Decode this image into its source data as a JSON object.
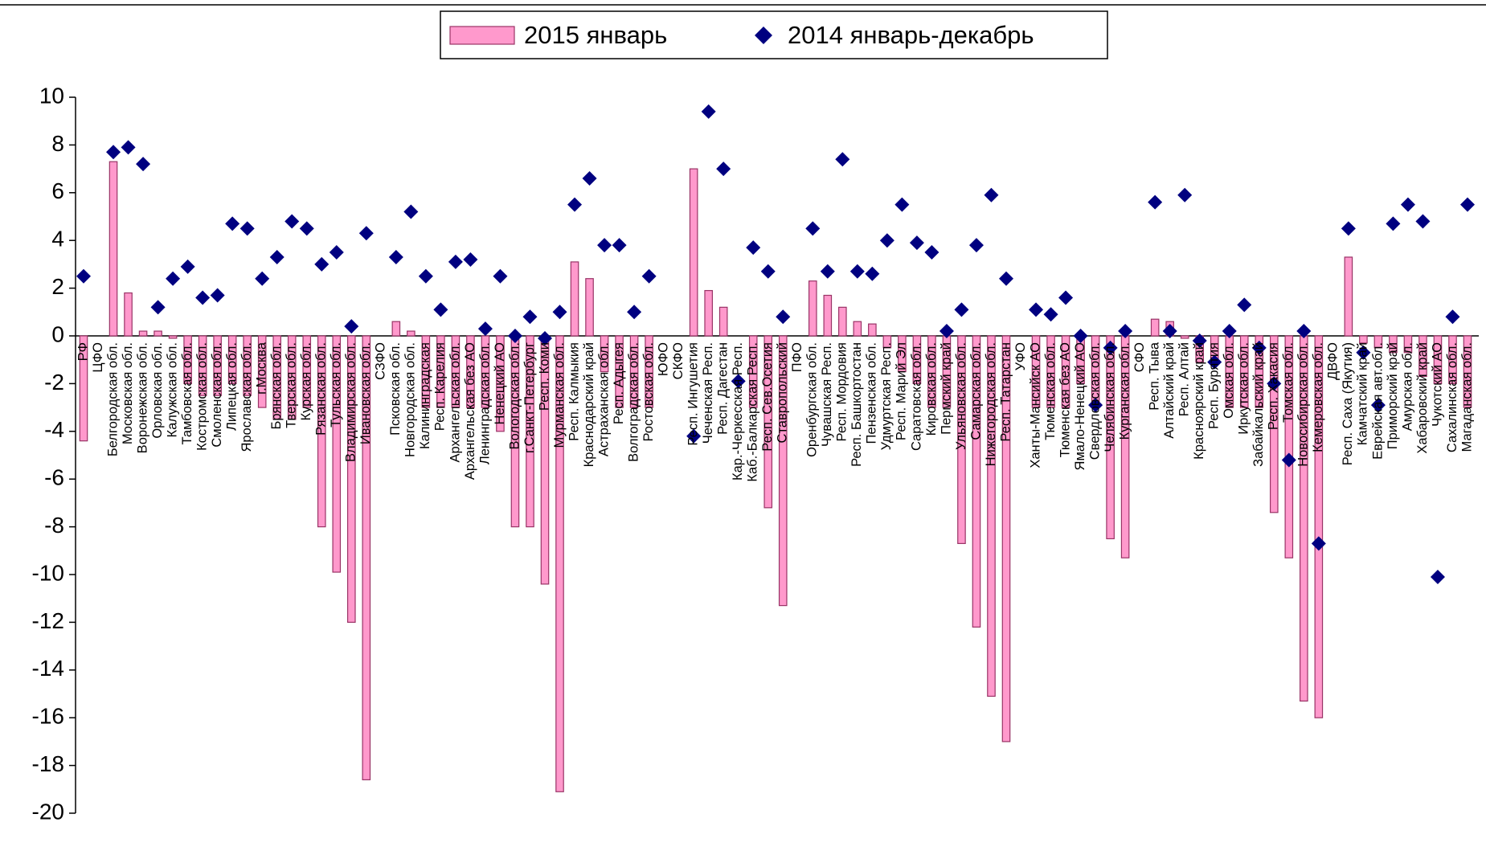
{
  "chart_data": {
    "type": "bar",
    "categories": [
      "РФ",
      "ЦФО",
      "Белгородская обл.",
      "Московская обл.",
      "Воронежская обл.",
      "Орловская обл.",
      "Калужская обл.",
      "Тамбовская обл.",
      "Костромская обл.",
      "Смоленская обл.",
      "Липецкая обл.",
      "Ярославская обл.",
      "г.Москва",
      "Брянская обл.",
      "Тверская обл.",
      "Курская обл.",
      "Рязанская обл.",
      "Тульская обл.",
      "Владимирская обл.",
      "Ивановская обл.",
      "СЗФО",
      "Псковская обл.",
      "Новгородская обл.",
      "Калининградская",
      "Респ. Карелия",
      "Архангельская обл.",
      "Архангельская без АО",
      "Ленинградская обл.",
      "Ненецкий АО",
      "Вологодская обл.",
      "г.Санкт-Петербург",
      "Респ. Коми",
      "Мурманская обл.",
      "Респ. Калмыкия",
      "Краснодарский край",
      "Астраханская обл.",
      "Респ. Адыгея",
      "Волгоградская обл.",
      "Ростовская обл.",
      "ЮФО",
      "СКФО",
      "Респ. Ингушетия",
      "Чеченская Респ.",
      "Респ. Дагестан",
      "Кар.-Черкесская Респ.",
      "Каб.-Балкарская Респ.",
      "Респ. Сев.Осетия",
      "Ставропольский",
      "ПФО",
      "Оренбургская обл.",
      "Чувашская Респ.",
      "Респ. Мордовия",
      "Респ. Башкортостан",
      "Пензенская обл.",
      "Удмуртская Респ.",
      "Респ. Марий Эл",
      "Саратовская обл.",
      "Кировская обл.",
      "Пермский край",
      "Ульяновская обл.",
      "Самарская обл.",
      "Нижегородская обл.",
      "Респ. Татарстан",
      "УФО",
      "Ханты-Мансийск АО",
      "Тюменская обл.",
      "Тюменская без АО",
      "Ямало-Ненецкий АО",
      "Свердловская обл.",
      "Челябинская обл.",
      "Курганская обл.",
      "СФО",
      "Респ. Тыва",
      "Алтайский край",
      "Респ. Алтай",
      "Красноярский край",
      "Респ. Бурятия",
      "Омская обл.",
      "Иркутская обл.",
      "Забайкальский край",
      "Респ. Хакасия",
      "Томская обл.",
      "Новосибирская обл.",
      "Кемеровская обл.",
      "ДВФО",
      "Респ. Саха (Якутия)",
      "Камчатский край",
      "Еврейская авт.обл.",
      "Приморский край",
      "Амурская обл.",
      "Хабаровский край",
      "Чукотский АО",
      "Сахалинская обл.",
      "Магаданская обл."
    ],
    "series": [
      {
        "name": "2015 январь",
        "color": "#ff99cc",
        "values": [
          -4.4,
          null,
          7.3,
          1.8,
          0.2,
          0.2,
          -0.1,
          -2.0,
          -2.5,
          -2.5,
          -2.0,
          -2.5,
          -3.0,
          -3.5,
          -3.5,
          -3.0,
          -8.0,
          -9.9,
          -12.0,
          -18.6,
          null,
          0.6,
          0.2,
          -3.0,
          -3.0,
          -3.0,
          -3.0,
          -3.0,
          -4.0,
          -8.0,
          -8.0,
          -10.4,
          -19.1,
          3.1,
          2.4,
          -1.5,
          -3.0,
          -3.0,
          -3.0,
          null,
          null,
          7.0,
          1.9,
          1.2,
          0.0,
          -3.0,
          -7.2,
          -11.3,
          null,
          2.3,
          1.7,
          1.2,
          0.6,
          0.5,
          -0.5,
          -1.5,
          -2.0,
          -3.0,
          -3.0,
          -8.7,
          -12.2,
          -15.1,
          -17.0,
          null,
          -3.0,
          -3.0,
          -3.0,
          -2.0,
          -3.0,
          -8.5,
          -9.3,
          null,
          0.7,
          0.6,
          -0.1,
          -1.1,
          -1.0,
          -3.0,
          -3.0,
          -3.0,
          -7.4,
          -9.3,
          -15.3,
          -16.0,
          null,
          3.3,
          -0.3,
          -0.5,
          -0.7,
          -0.7,
          -1.7,
          -2.0,
          -2.0,
          -3.0
        ]
      },
      {
        "name": "2014 январь-декабрь",
        "color": "#000080",
        "type": "scatter",
        "values": [
          2.5,
          null,
          7.7,
          7.9,
          7.2,
          1.2,
          2.4,
          2.9,
          1.6,
          1.7,
          4.7,
          4.5,
          2.4,
          3.3,
          4.8,
          4.5,
          3.0,
          3.5,
          0.4,
          4.3,
          null,
          3.3,
          5.2,
          2.5,
          1.1,
          3.1,
          3.2,
          0.3,
          2.5,
          0.0,
          0.8,
          -0.1,
          1.0,
          5.5,
          6.6,
          3.8,
          3.8,
          1.0,
          2.5,
          null,
          null,
          -4.2,
          9.4,
          7.0,
          -1.9,
          3.7,
          2.7,
          0.8,
          null,
          4.5,
          2.7,
          7.4,
          2.7,
          2.6,
          4.0,
          5.5,
          3.9,
          3.5,
          0.2,
          1.1,
          3.8,
          5.9,
          2.4,
          null,
          1.1,
          0.9,
          1.6,
          0.0,
          -2.9,
          -0.5,
          0.2,
          null,
          5.6,
          0.2,
          5.9,
          -0.2,
          -1.1,
          0.2,
          1.3,
          -0.5,
          -2.0,
          -5.2,
          0.2,
          -8.7,
          null,
          4.5,
          -0.7,
          -2.9,
          4.7,
          5.5,
          4.8,
          -10.1,
          0.8,
          5.5
        ]
      }
    ],
    "ylim": [
      -20,
      10
    ],
    "yticks": [
      -20,
      -18,
      -16,
      -14,
      -12,
      -10,
      -8,
      -6,
      -4,
      -2,
      0,
      2,
      4,
      6,
      8,
      10
    ],
    "grid": false,
    "legend": "top"
  }
}
